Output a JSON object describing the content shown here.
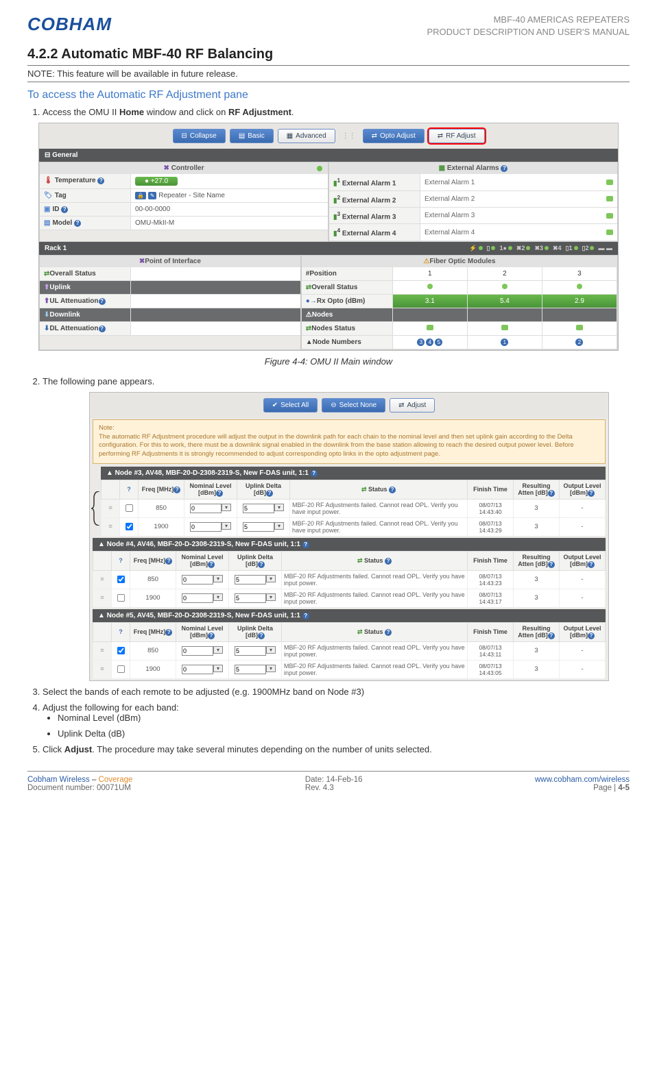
{
  "header": {
    "logo_text": "COBHAM",
    "right_line1": "MBF-40 AMERICAS REPEATERS",
    "right_line2": "PRODUCT DESCRIPTION AND USER'S MANUAL"
  },
  "section": {
    "number_title": "4.2.2   Automatic MBF-40 RF Balancing",
    "note": "NOTE: This feature will be available in future release.",
    "access_heading": "To access the Automatic RF Adjustment pane",
    "step1_pre": "Access the OMU II ",
    "step1_home": "Home",
    "step1_mid": " window and click on ",
    "step1_rf": "RF Adjustment",
    "step1_post": ".",
    "figure1_caption": "Figure 4-4: OMU II Main window",
    "step2": "The following pane appears.",
    "step3": "Select the bands of each remote to be adjusted (e.g. 1900MHz band on Node #3)",
    "step4": "Adjust the following for each band:",
    "step4_b1": "Nominal Level (dBm)",
    "step4_b2": "Uplink Delta (dB)",
    "step5_pre": "Click ",
    "step5_adj": "Adjust",
    "step5_post": ". The procedure may take several minutes depending on the number of units selected."
  },
  "ss1": {
    "toolbar": {
      "collapse": "Collapse",
      "basic": "Basic",
      "advanced": "Advanced",
      "opto": "Opto Adjust",
      "rf": "RF Adjust"
    },
    "general_label": "General",
    "controller_label": "Controller",
    "ext_alarms_label": "External Alarms",
    "left_rows": {
      "temperature_k": "Temperature",
      "temperature_v": "+27.0",
      "tag_k": "Tag",
      "tag_v": "Repeater - Site Name",
      "id_k": "ID",
      "id_v": "00-00-0000",
      "model_k": "Model",
      "model_v": "OMU-MkII-M"
    },
    "alarms": [
      {
        "k": "External Alarm 1",
        "v": "External Alarm 1"
      },
      {
        "k": "External Alarm 2",
        "v": "External Alarm 2"
      },
      {
        "k": "External Alarm 3",
        "v": "External Alarm 3"
      },
      {
        "k": "External Alarm 4",
        "v": "External Alarm 4"
      }
    ],
    "rack_label": "Rack 1",
    "poi_label": "Point of Interface",
    "fom_label": "Fiber Optic Modules",
    "poi_rows": {
      "overall_k": "Overall Status",
      "uplink_k": "Uplink",
      "ul_atten_k": "UL Attenuation",
      "downlink_k": "Downlink",
      "dl_atten_k": "DL Attenuation"
    },
    "fom": {
      "position_k": "Position",
      "positions": [
        "1",
        "2",
        "3"
      ],
      "overall_k": "Overall Status",
      "rxopto_k": "Rx Opto (dBm)",
      "rxopto_vals": [
        "3.1",
        "5.4",
        "2.9"
      ],
      "nodes_k": "Nodes",
      "nodes_status_k": "Nodes Status",
      "node_numbers_k": "Node Numbers",
      "node_numbers": [
        [
          "3",
          "4",
          "5"
        ],
        [
          "1"
        ],
        [
          "2"
        ]
      ]
    }
  },
  "ss2": {
    "toolbar": {
      "select_all": "Select All",
      "select_none": "Select None",
      "adjust": "Adjust"
    },
    "note_title": "Note:",
    "note_body": "The automatic RF Adjustment procedure will adjust the output in the downlink path for each chain to the nominal level and then set uplink gain according to the Delta configuration. For this to work, there must be a downlink signal enabled in the downlink from the base station allowing to reach the desired output power level. Before performing RF Adjustments it is strongly recommended to adjust corresponding opto links in the opto adjustment page.",
    "headers": {
      "freq": "Freq [MHz]",
      "nominal": "Nominal Level [dBm]",
      "uplink": "Uplink Delta [dB]",
      "status": "Status",
      "finish": "Finish Time",
      "atten": "Resulting Atten [dB]",
      "output": "Output Level [dBm]"
    },
    "status_text": "MBF-20 RF Adjustments failed. Cannot read OPL. Verify you have input power.",
    "nodes": [
      {
        "title": "Node #3, AV48, MBF-20-D-2308-2319-S, New F-DAS unit, 1:1",
        "rows": [
          {
            "checked": false,
            "freq": "850",
            "nom": "0",
            "upl": "5",
            "time": "08/07/13 14:43:40",
            "atten": "3",
            "out": "-"
          },
          {
            "checked": true,
            "freq": "1900",
            "nom": "0",
            "upl": "5",
            "time": "08/07/13 14:43:29",
            "atten": "3",
            "out": "-"
          }
        ]
      },
      {
        "title": "Node #4, AV46, MBF-20-D-2308-2319-S, New F-DAS unit, 1:1",
        "rows": [
          {
            "checked": true,
            "freq": "850",
            "nom": "0",
            "upl": "5",
            "time": "08/07/13 14:43:23",
            "atten": "3",
            "out": "-"
          },
          {
            "checked": false,
            "freq": "1900",
            "nom": "0",
            "upl": "5",
            "time": "08/07/13 14:43:17",
            "atten": "3",
            "out": "-"
          }
        ]
      },
      {
        "title": "Node #5, AV45, MBF-20-D-2308-2319-S, New F-DAS unit, 1:1",
        "rows": [
          {
            "checked": true,
            "freq": "850",
            "nom": "0",
            "upl": "5",
            "time": "08/07/13 14:43:11",
            "atten": "3",
            "out": "-"
          },
          {
            "checked": false,
            "freq": "1900",
            "nom": "0",
            "upl": "5",
            "time": "08/07/13 14:43:05",
            "atten": "3",
            "out": "-"
          }
        ]
      }
    ]
  },
  "footer": {
    "brand1": "Cobham Wireless",
    "dash": " – ",
    "brand2": "Coverage",
    "date": "Date: 14-Feb-16",
    "url": "www.cobham.com/wireless",
    "doc": "Document number: 00071UM",
    "rev": "Rev. 4.3",
    "page_pre": "Page | ",
    "page_num": "4-5"
  }
}
